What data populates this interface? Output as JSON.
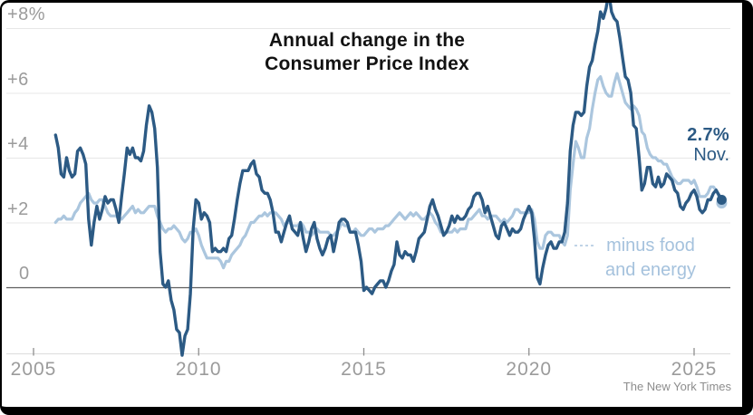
{
  "chart_data": {
    "type": "line",
    "title_lines": [
      "Annual change in the",
      "Consumer Price Index"
    ],
    "x_axis": {
      "ticks": [
        2005,
        2010,
        2015,
        2020,
        2025
      ],
      "start": "2005-09",
      "end": "2025-11",
      "unit": "monthly"
    },
    "y_axis": {
      "ticks": [
        {
          "value": 8,
          "label": "+8%"
        },
        {
          "value": 6,
          "label": "+6"
        },
        {
          "value": 4,
          "label": "+4"
        },
        {
          "value": 2,
          "label": "+2"
        },
        {
          "value": 0,
          "label": "0"
        }
      ],
      "visible_range": [
        -2.1,
        8.9
      ],
      "unit": "percent"
    },
    "series": [
      {
        "name": "Consumer Price Index (all items, annual change)",
        "color": "#2C5A84",
        "end_dot": true,
        "values": [
          4.7,
          4.3,
          3.5,
          3.4,
          4.0,
          3.6,
          3.4,
          3.5,
          4.2,
          4.3,
          4.1,
          3.8,
          2.1,
          1.3,
          2.0,
          2.5,
          2.1,
          2.4,
          2.8,
          2.6,
          2.7,
          2.7,
          2.4,
          2.0,
          2.8,
          3.5,
          4.3,
          4.1,
          4.3,
          4.0,
          4.0,
          3.9,
          4.2,
          5.0,
          5.6,
          5.4,
          4.9,
          3.7,
          1.1,
          0.1,
          0.0,
          0.2,
          -0.4,
          -0.7,
          -1.3,
          -1.4,
          -2.1,
          -1.5,
          -1.3,
          -0.2,
          1.8,
          2.7,
          2.6,
          2.1,
          2.3,
          2.2,
          2.0,
          1.1,
          1.2,
          1.1,
          1.1,
          1.2,
          1.1,
          1.5,
          1.6,
          2.1,
          2.7,
          3.2,
          3.6,
          3.6,
          3.6,
          3.8,
          3.9,
          3.5,
          3.4,
          3.0,
          2.9,
          2.9,
          2.7,
          2.3,
          1.7,
          1.7,
          1.4,
          1.7,
          2.0,
          2.2,
          1.8,
          1.7,
          1.6,
          2.0,
          1.5,
          1.1,
          1.4,
          1.8,
          2.0,
          1.5,
          1.2,
          1.0,
          1.2,
          1.5,
          1.6,
          1.1,
          1.5,
          2.0,
          2.1,
          2.1,
          2.0,
          1.7,
          1.7,
          1.7,
          1.3,
          0.8,
          -0.1,
          0.0,
          -0.1,
          -0.2,
          0.0,
          0.1,
          0.2,
          0.2,
          0.0,
          0.2,
          0.5,
          0.7,
          1.4,
          1.0,
          0.9,
          1.1,
          1.0,
          1.0,
          0.8,
          1.1,
          1.5,
          1.6,
          1.7,
          2.1,
          2.5,
          2.7,
          2.4,
          2.2,
          1.9,
          1.6,
          1.7,
          1.9,
          2.2,
          2.0,
          2.2,
          2.1,
          2.1,
          2.2,
          2.4,
          2.5,
          2.8,
          2.9,
          2.9,
          2.7,
          2.3,
          2.5,
          2.2,
          1.9,
          1.6,
          1.5,
          1.9,
          2.0,
          1.8,
          1.6,
          1.8,
          1.7,
          1.7,
          1.8,
          2.1,
          2.3,
          2.5,
          2.3,
          1.5,
          0.3,
          0.1,
          0.6,
          1.0,
          1.3,
          1.4,
          1.2,
          1.2,
          1.4,
          1.4,
          1.7,
          2.6,
          4.2,
          5.0,
          5.4,
          5.4,
          5.3,
          5.4,
          6.2,
          6.8,
          7.0,
          7.5,
          7.9,
          8.5,
          8.3,
          8.6,
          9.1,
          8.5,
          8.3,
          8.2,
          7.7,
          7.1,
          6.5,
          6.4,
          6.0,
          5.0,
          4.9,
          4.0,
          3.0,
          3.2,
          3.7,
          3.7,
          3.2,
          3.1,
          3.4,
          3.1,
          3.2,
          3.5,
          3.4,
          3.3,
          3.0,
          2.9,
          2.5,
          2.4,
          2.6,
          2.7,
          2.9,
          3.0,
          2.8,
          2.4,
          2.3,
          2.4,
          2.7,
          2.7,
          2.9,
          3.0,
          2.85,
          2.7
        ]
      },
      {
        "name": "CPI minus food and energy (core)",
        "color": "#ABC6DE",
        "end_dot": true,
        "values": [
          2.0,
          2.1,
          2.1,
          2.2,
          2.1,
          2.1,
          2.1,
          2.3,
          2.4,
          2.6,
          2.7,
          2.8,
          2.9,
          2.7,
          2.6,
          2.6,
          2.7,
          2.7,
          2.5,
          2.3,
          2.2,
          2.2,
          2.2,
          2.1,
          2.1,
          2.2,
          2.3,
          2.4,
          2.5,
          2.3,
          2.4,
          2.3,
          2.3,
          2.4,
          2.5,
          2.5,
          2.5,
          2.2,
          2.0,
          1.8,
          1.7,
          1.8,
          1.8,
          1.9,
          1.8,
          1.7,
          1.5,
          1.4,
          1.5,
          1.7,
          1.7,
          1.8,
          1.6,
          1.3,
          1.1,
          0.9,
          0.9,
          0.9,
          0.9,
          0.9,
          0.8,
          0.6,
          0.8,
          0.8,
          1.0,
          1.1,
          1.2,
          1.3,
          1.5,
          1.6,
          1.8,
          2.0,
          2.0,
          2.1,
          2.2,
          2.2,
          2.3,
          2.2,
          2.3,
          2.3,
          2.3,
          2.2,
          2.1,
          1.9,
          2.0,
          2.0,
          1.9,
          1.9,
          1.9,
          2.0,
          1.9,
          1.7,
          1.7,
          1.6,
          1.7,
          1.8,
          1.7,
          1.7,
          1.7,
          1.7,
          1.6,
          1.6,
          1.7,
          1.8,
          2.0,
          1.9,
          1.9,
          1.7,
          1.7,
          1.8,
          1.7,
          1.6,
          1.6,
          1.7,
          1.8,
          1.8,
          1.7,
          1.8,
          1.8,
          1.8,
          1.9,
          1.9,
          2.0,
          2.1,
          2.2,
          2.3,
          2.2,
          2.1,
          2.2,
          2.3,
          2.2,
          2.3,
          2.2,
          2.1,
          2.1,
          2.2,
          2.3,
          2.2,
          2.0,
          1.9,
          1.7,
          1.7,
          1.7,
          1.7,
          1.7,
          1.8,
          1.7,
          1.8,
          1.8,
          1.8,
          2.1,
          2.1,
          2.2,
          2.3,
          2.4,
          2.2,
          2.2,
          2.1,
          2.2,
          2.2,
          2.2,
          2.1,
          2.0,
          2.1,
          2.0,
          2.1,
          2.2,
          2.4,
          2.4,
          2.3,
          2.3,
          2.3,
          2.3,
          2.4,
          2.1,
          1.4,
          1.2,
          1.2,
          1.6,
          1.7,
          1.7,
          1.6,
          1.6,
          1.6,
          1.4,
          1.3,
          1.6,
          3.0,
          3.8,
          4.5,
          4.3,
          4.0,
          4.0,
          4.6,
          4.9,
          5.5,
          6.0,
          6.4,
          6.5,
          6.2,
          6.0,
          5.9,
          5.9,
          6.3,
          6.6,
          6.3,
          6.0,
          5.7,
          5.6,
          5.5,
          5.6,
          5.5,
          5.3,
          4.8,
          4.7,
          4.3,
          4.1,
          4.0,
          4.0,
          3.9,
          3.9,
          3.8,
          3.8,
          3.6,
          3.4,
          3.3,
          3.2,
          3.2,
          3.3,
          3.3,
          3.3,
          3.2,
          3.3,
          3.1,
          2.8,
          2.8,
          2.8,
          2.9,
          3.1,
          3.1,
          3.0,
          2.8,
          2.6
        ]
      }
    ],
    "annotations": {
      "latest_value": "2.7%",
      "latest_period": "Nov.",
      "core_label_lines": [
        "minus food",
        "and energy"
      ]
    },
    "grid": true,
    "legend_position": "inline-labels",
    "source_credit": "The New York Times"
  },
  "colors": {
    "grid_line": "#e7e7e7",
    "zero_line": "#5f5f5f",
    "axis_line": "#dcdcdc",
    "axis_tick": "#8f8f8f",
    "tick_label": "#9b9b9b",
    "title": "#121212",
    "core_text": "#a5c2dd",
    "credit": "#8d8d8d",
    "frame": "#000000"
  }
}
